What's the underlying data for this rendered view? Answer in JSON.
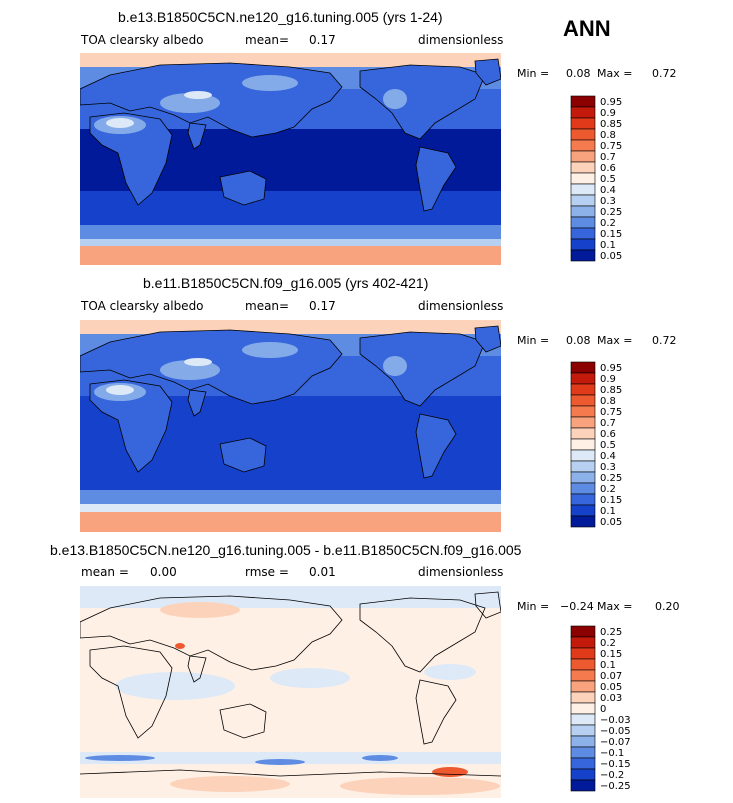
{
  "season": "ANN",
  "panels": [
    {
      "title": "b.e13.B1850C5CN.ne120_g16.tuning.005 (yrs 1-24)",
      "variable": "TOA clearsky albedo",
      "mean_label": "mean=",
      "mean_value": "0.17",
      "units": "dimensionless",
      "min_label": "Min =",
      "min_value": "0.08",
      "max_label": "Max =",
      "max_value": "0.72"
    },
    {
      "title": "b.e11.B1850C5CN.f09_g16.005 (yrs 402-421)",
      "variable": "TOA clearsky albedo",
      "mean_label": "mean=",
      "mean_value": "0.17",
      "units": "dimensionless",
      "min_label": "Min =",
      "min_value": "0.08",
      "max_label": "Max =",
      "max_value": "0.72"
    },
    {
      "title": "b.e13.B1850C5CN.ne120_g16.tuning.005 - b.e11.B1850C5CN.f09_g16.005",
      "mean_label": "mean =",
      "mean_value": "0.00",
      "rmse_label": "rmse =",
      "rmse_value": "0.01",
      "units": "dimensionless",
      "min_label": "Min =",
      "min_value": "−0.24",
      "max_label": "Max =",
      "max_value": "0.20"
    }
  ],
  "chart_data": [
    {
      "type": "heatmap",
      "title": "b.e13.B1850C5CN.ne120_g16.tuning.005 (yrs 1-24)",
      "variable": "TOA clearsky albedo",
      "units": "dimensionless",
      "mean": 0.17,
      "min": 0.08,
      "max": 0.72,
      "colorbar_levels": [
        "0.95",
        "0.9",
        "0.85",
        "0.8",
        "0.75",
        "0.7",
        "0.6",
        "0.5",
        "0.4",
        "0.3",
        "0.25",
        "0.2",
        "0.15",
        "0.1",
        "0.05"
      ],
      "colorbar_colors": [
        "#8b0000",
        "#c41a0c",
        "#e03a1a",
        "#ee5a30",
        "#f57a4e",
        "#f9a27e",
        "#fcd2ba",
        "#fff0e6",
        "#dde9f7",
        "#b7cff0",
        "#8db2ea",
        "#5e8ce3",
        "#3766dc",
        "#1541cb",
        "#001a9a"
      ]
    },
    {
      "type": "heatmap",
      "title": "b.e11.B1850C5CN.f09_g16.005 (yrs 402-421)",
      "variable": "TOA clearsky albedo",
      "units": "dimensionless",
      "mean": 0.17,
      "min": 0.08,
      "max": 0.72,
      "colorbar_levels": [
        "0.95",
        "0.9",
        "0.85",
        "0.8",
        "0.75",
        "0.7",
        "0.6",
        "0.5",
        "0.4",
        "0.3",
        "0.25",
        "0.2",
        "0.15",
        "0.1",
        "0.05"
      ],
      "colorbar_colors": [
        "#8b0000",
        "#c41a0c",
        "#e03a1a",
        "#ee5a30",
        "#f57a4e",
        "#f9a27e",
        "#fcd2ba",
        "#fff0e6",
        "#dde9f7",
        "#b7cff0",
        "#8db2ea",
        "#5e8ce3",
        "#3766dc",
        "#1541cb",
        "#001a9a"
      ]
    },
    {
      "type": "heatmap",
      "title": "b.e13.B1850C5CN.ne120_g16.tuning.005 - b.e11.B1850C5CN.f09_g16.005",
      "units": "dimensionless",
      "mean": 0.0,
      "rmse": 0.01,
      "min": -0.24,
      "max": 0.2,
      "colorbar_levels": [
        "0.25",
        "0.2",
        "0.15",
        "0.1",
        "0.07",
        "0.05",
        "0.03",
        "0",
        "−0.03",
        "−0.05",
        "−0.07",
        "−0.1",
        "−0.15",
        "−0.2",
        "−0.25"
      ],
      "colorbar_colors": [
        "#8b0000",
        "#c41a0c",
        "#e03a1a",
        "#ee5a30",
        "#f57a4e",
        "#f9a27e",
        "#fcd2ba",
        "#fff0e6",
        "#dde9f7",
        "#b7cff0",
        "#8db2ea",
        "#5e8ce3",
        "#3766dc",
        "#1541cb",
        "#001a9a"
      ]
    }
  ]
}
